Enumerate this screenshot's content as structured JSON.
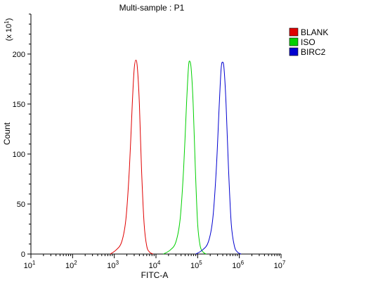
{
  "chart_data": {
    "type": "line",
    "title": "Multi-sample : P1",
    "xlabel": "FITC-A",
    "ylabel": "Count",
    "y_multiplier_label": "(x 10",
    "y_multiplier_exp": "1",
    "y_multiplier_close": ")",
    "x_scale": "log",
    "xlim": [
      10,
      10000000
    ],
    "ylim": [
      0,
      240
    ],
    "x_ticks": [
      {
        "base": "10",
        "exp": "1",
        "value": 10
      },
      {
        "base": "10",
        "exp": "2",
        "value": 100
      },
      {
        "base": "10",
        "exp": "3",
        "value": 1000
      },
      {
        "base": "10",
        "exp": "4",
        "value": 10000
      },
      {
        "base": "10",
        "exp": "5",
        "value": 100000
      },
      {
        "base": "10",
        "exp": "6",
        "value": 1000000
      },
      {
        "base": "10",
        "exp": "7",
        "value": 10000000
      }
    ],
    "y_ticks": [
      0,
      50,
      100,
      150,
      200
    ],
    "grid": false,
    "legend_position": "top-right",
    "series": [
      {
        "name": "BLANK",
        "color": "#e00000",
        "points": [
          [
            800,
            0
          ],
          [
            1100,
            4
          ],
          [
            1500,
            12
          ],
          [
            1900,
            35
          ],
          [
            2300,
            85
          ],
          [
            2700,
            150
          ],
          [
            3000,
            185
          ],
          [
            3300,
            194
          ],
          [
            3600,
            185
          ],
          [
            4000,
            150
          ],
          [
            4500,
            85
          ],
          [
            5200,
            30
          ],
          [
            6000,
            8
          ],
          [
            7000,
            2
          ],
          [
            8500,
            0
          ]
        ]
      },
      {
        "name": "ISO",
        "color": "#00d000",
        "points": [
          [
            15000,
            0
          ],
          [
            22000,
            4
          ],
          [
            30000,
            12
          ],
          [
            38000,
            35
          ],
          [
            46000,
            85
          ],
          [
            54000,
            150
          ],
          [
            60000,
            186
          ],
          [
            64000,
            193
          ],
          [
            70000,
            185
          ],
          [
            78000,
            150
          ],
          [
            88000,
            85
          ],
          [
            100000,
            30
          ],
          [
            115000,
            8
          ],
          [
            135000,
            2
          ],
          [
            160000,
            0
          ]
        ]
      },
      {
        "name": "BIRC2",
        "color": "#0000d0",
        "points": [
          [
            90000,
            0
          ],
          [
            130000,
            4
          ],
          [
            180000,
            12
          ],
          [
            230000,
            35
          ],
          [
            280000,
            85
          ],
          [
            330000,
            150
          ],
          [
            365000,
            185
          ],
          [
            395000,
            192
          ],
          [
            430000,
            185
          ],
          [
            480000,
            150
          ],
          [
            550000,
            85
          ],
          [
            640000,
            30
          ],
          [
            760000,
            8
          ],
          [
            900000,
            2
          ],
          [
            1100000,
            0
          ]
        ]
      }
    ]
  }
}
